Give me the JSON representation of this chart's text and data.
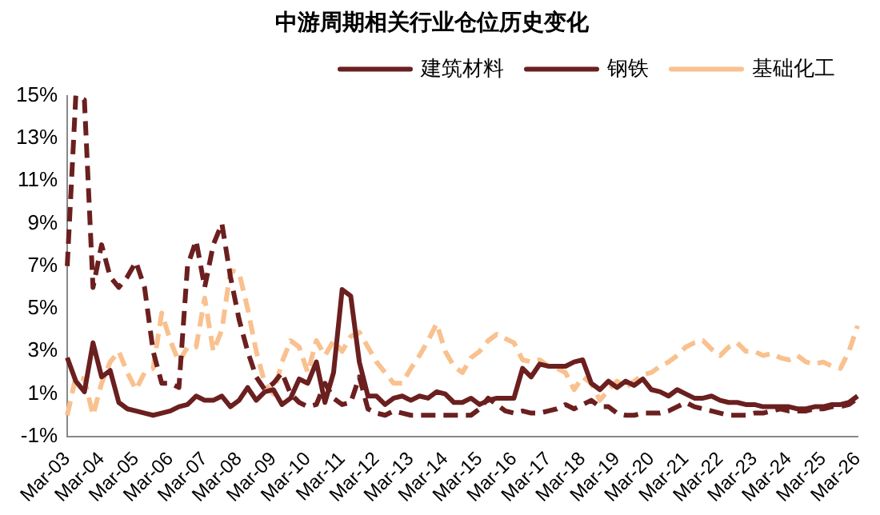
{
  "chart_data": {
    "type": "line",
    "title": "中游周期相关行业仓位历史变化",
    "categories": [
      "Mar-03",
      null,
      null,
      null,
      "Mar-04",
      null,
      null,
      null,
      "Mar-05",
      null,
      null,
      null,
      "Mar-06",
      null,
      null,
      null,
      "Mar-07",
      null,
      null,
      null,
      "Mar-08",
      null,
      null,
      null,
      "Mar-09",
      null,
      null,
      null,
      "Mar-10",
      null,
      null,
      null,
      "Mar-11",
      null,
      null,
      null,
      "Mar-12",
      null,
      null,
      null,
      "Mar-13",
      null,
      null,
      null,
      "Mar-14",
      null,
      null,
      null,
      "Mar-15",
      null,
      null,
      null,
      "Mar-16",
      null,
      null,
      null,
      "Mar-17",
      null,
      null,
      null,
      "Mar-18",
      null,
      null,
      null,
      "Mar-19",
      null,
      null,
      null,
      "Mar-20",
      null,
      null,
      null,
      "Mar-21",
      null,
      null,
      null,
      "Mar-22",
      null,
      null,
      null,
      "Mar-23",
      null,
      null,
      null,
      "Mar-24",
      null,
      null,
      null,
      "Mar-25",
      null,
      null,
      null,
      "Mar-26"
    ],
    "series": [
      {
        "name": "建筑材料",
        "color": "#6b1f1f",
        "line_style": "solid",
        "values": [
          2.7,
          1.6,
          1.1,
          3.4,
          1.8,
          2.1,
          0.6,
          0.3,
          0.2,
          0.1,
          0,
          0.1,
          0.2,
          0.4,
          0.5,
          0.9,
          0.7,
          0.7,
          0.9,
          0.4,
          0.7,
          1.3,
          0.7,
          1.1,
          1.2,
          0.5,
          0.8,
          1.7,
          1.5,
          2.5,
          0.6,
          2.0,
          5.9,
          5.6,
          2.5,
          0.9,
          0.9,
          0.5,
          0.8,
          0.9,
          0.7,
          0.9,
          0.8,
          1.1,
          1.0,
          0.6,
          0.6,
          0.8,
          0.5,
          0.7,
          0.8,
          0.8,
          0.8,
          2.2,
          1.8,
          2.4,
          2.3,
          2.3,
          2.3,
          2.5,
          2.6,
          1.5,
          1.2,
          1.6,
          1.3,
          1.6,
          1.4,
          1.7,
          1.2,
          1.1,
          0.9,
          1.2,
          1.0,
          0.8,
          0.8,
          0.9,
          0.7,
          0.6,
          0.6,
          0.5,
          0.5,
          0.4,
          0.4,
          0.4,
          0.4,
          0.3,
          0.3,
          0.4,
          0.4,
          0.5,
          0.5,
          0.6,
          0.9
        ]
      },
      {
        "name": "钢铁",
        "color": "#6b1f1f",
        "line_style": "dashed",
        "values": [
          7,
          15,
          14.8,
          6,
          8,
          6.5,
          6,
          6.5,
          7.2,
          6,
          3,
          1.5,
          1.5,
          1.3,
          7,
          8.2,
          6,
          8,
          9,
          6.5,
          4.5,
          3,
          1.8,
          1.2,
          1.5,
          2,
          1,
          0.6,
          0.4,
          0.5,
          1.5,
          0.8,
          0.5,
          0.6,
          1.8,
          0.3,
          0.1,
          0,
          0.2,
          0.1,
          0,
          0,
          0,
          0,
          0,
          0,
          0,
          0,
          0.3,
          0.8,
          0.5,
          0.2,
          0.1,
          0.2,
          0.1,
          0.1,
          0.2,
          0.3,
          0.5,
          0.3,
          0.5,
          0.7,
          0.4,
          0.4,
          0.1,
          0,
          0,
          0.1,
          0.1,
          0.1,
          0.2,
          0.4,
          0.6,
          0.4,
          0.3,
          0.2,
          0.1,
          0,
          0,
          0,
          0.1,
          0.1,
          0.2,
          0.3,
          0.2,
          0.2,
          0.2,
          0.3,
          0.3,
          0.4,
          0.4,
          0.5,
          0.8
        ]
      },
      {
        "name": "基础化工",
        "color": "#f9c18f",
        "line_style": "dashed",
        "values": [
          0,
          1.8,
          1.7,
          0,
          1.5,
          2.5,
          3,
          2,
          1.2,
          2,
          2.2,
          4.8,
          3.5,
          2.5,
          3.2,
          3.2,
          5.5,
          3,
          4,
          6.8,
          6.7,
          5,
          3,
          1.5,
          1.0,
          2.5,
          3.5,
          3.2,
          2.0,
          3.5,
          2.8,
          3.5,
          3.0,
          3.7,
          3.9,
          3.2,
          2.5,
          2.0,
          1.5,
          1.5,
          2.2,
          2.8,
          3.5,
          4.3,
          3.0,
          2.3,
          2.0,
          2.7,
          3.0,
          3.5,
          3.8,
          3.6,
          3.4,
          2.6,
          2.5,
          2.6,
          2.3,
          2.2,
          2.0,
          1.2,
          1.8,
          1.5,
          0.7,
          1.2,
          1.6,
          1.3,
          1.6,
          1.9,
          2.0,
          2.3,
          2.5,
          2.8,
          3.2,
          3.4,
          3.5,
          3.1,
          2.8,
          3.2,
          3.4,
          3.0,
          3.0,
          2.8,
          2.9,
          2.7,
          2.6,
          2.8,
          2.5,
          2.4,
          2.5,
          2.3,
          2.2,
          3.0,
          4.2
        ]
      }
    ],
    "ylim": [
      -1,
      15
    ],
    "yticks": [
      {
        "value": -1,
        "label": "-1%"
      },
      {
        "value": 1,
        "label": "1%"
      },
      {
        "value": 3,
        "label": "3%"
      },
      {
        "value": 5,
        "label": "5%"
      },
      {
        "value": 7,
        "label": "7%"
      },
      {
        "value": 9,
        "label": "9%"
      },
      {
        "value": 11,
        "label": "11%"
      },
      {
        "value": 13,
        "label": "13%"
      },
      {
        "value": 15,
        "label": "15%"
      }
    ],
    "grid": false,
    "legend": "top",
    "marker": "none"
  }
}
